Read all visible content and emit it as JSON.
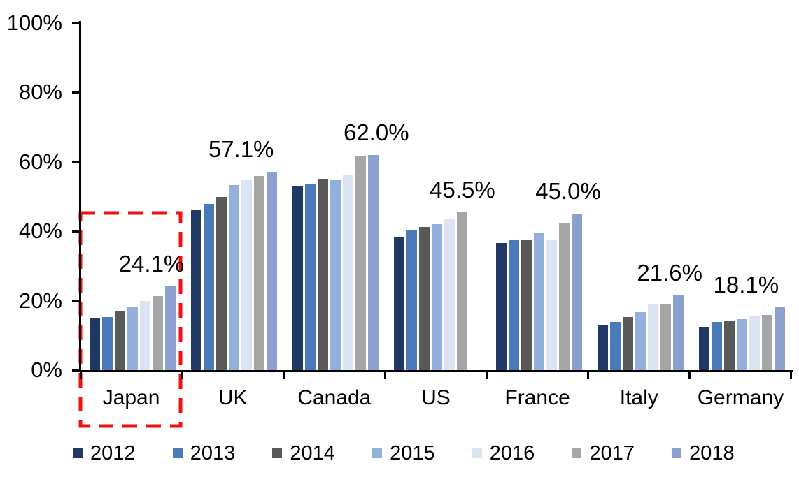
{
  "chart_data": {
    "type": "bar",
    "categories": [
      "Japan",
      "UK",
      "Canada",
      "US",
      "France",
      "Italy",
      "Germany"
    ],
    "series": [
      {
        "name": "2012",
        "color": "#1F3864",
        "values": [
          15.1,
          46.3,
          53.0,
          38.4,
          36.6,
          13.1,
          12.5
        ]
      },
      {
        "name": "2013",
        "color": "#4A7AB9",
        "values": [
          15.3,
          47.8,
          53.5,
          40.2,
          37.7,
          13.9,
          13.9
        ]
      },
      {
        "name": "2014",
        "color": "#595959",
        "values": [
          16.9,
          50.0,
          55.0,
          41.2,
          37.7,
          15.3,
          14.3
        ]
      },
      {
        "name": "2015",
        "color": "#93AFDB",
        "values": [
          18.2,
          53.3,
          54.7,
          42.1,
          39.4,
          16.8,
          14.7
        ]
      },
      {
        "name": "2016",
        "color": "#DBE4F2",
        "values": [
          20.0,
          54.8,
          56.3,
          43.7,
          37.4,
          19.0,
          15.4
        ]
      },
      {
        "name": "2017",
        "color": "#A6A6A6",
        "values": [
          21.3,
          56.0,
          61.8,
          45.5,
          42.4,
          19.2,
          15.8
        ]
      },
      {
        "name": "2018",
        "color": "#8CA0CE",
        "values": [
          24.1,
          57.1,
          62.0,
          null,
          45.0,
          21.6,
          18.1
        ]
      }
    ],
    "value_labels": [
      "24.1%",
      "57.1%",
      "62.0%",
      "45.5%",
      "45.0%",
      "21.6%",
      "18.1%"
    ],
    "y_ticks": [
      "0%",
      "20%",
      "40%",
      "60%",
      "80%",
      "100%"
    ],
    "ylim": [
      0,
      100
    ],
    "xlabel": "",
    "ylabel": "",
    "grid": false,
    "legend_position": "bottom",
    "legend_labels": [
      "2012",
      "2013",
      "2014",
      "2015",
      "2016",
      "2017",
      "2018"
    ],
    "annotation": {
      "highlighted_category": "Japan",
      "style": "red dashed rectangle",
      "color": "#EE1111"
    }
  }
}
